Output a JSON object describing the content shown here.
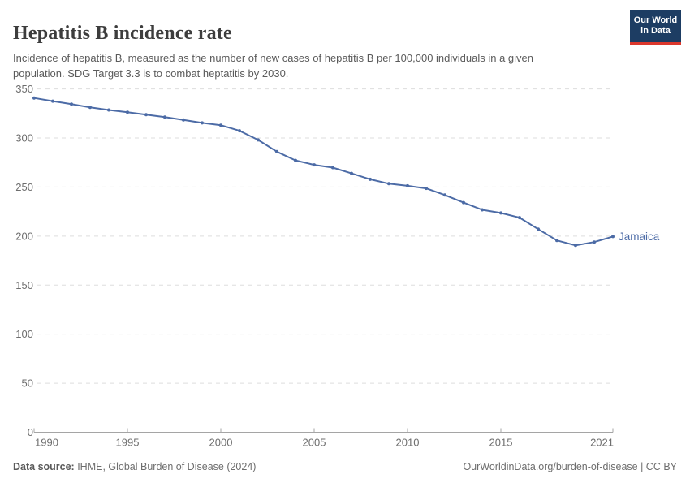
{
  "header": {
    "title": "Hepatitis B incidence rate",
    "subtitle": "Incidence of hepatitis B, measured as the number of new cases of hepatitis B per 100,000 individuals in a given population. SDG Target 3.3 is to combat heptatitis by 2030.",
    "logo": {
      "line1": "Our World",
      "line2": "in Data"
    }
  },
  "footer": {
    "datasource_label": "Data source:",
    "datasource_value": " IHME, Global Burden of Disease (2024)",
    "credit": "OurWorldinData.org/burden-of-disease | CC BY"
  },
  "colors": {
    "series_blue": "#4c6ba6",
    "grid": "#dddddd",
    "axis_line": "#a5a5a5",
    "axis_text": "#6e6e6e",
    "logo_bg": "#1d3d63",
    "logo_stripe": "#dc382d"
  },
  "chart_data": {
    "type": "line",
    "title": "Hepatitis B incidence rate",
    "xlabel": "",
    "ylabel": "New cases of hepatitis B per 100,000 individuals",
    "x": [
      1990,
      1991,
      1992,
      1993,
      1994,
      1995,
      1996,
      1997,
      1998,
      1999,
      2000,
      2001,
      2002,
      2003,
      2004,
      2005,
      2006,
      2007,
      2008,
      2009,
      2010,
      2011,
      2012,
      2013,
      2014,
      2015,
      2016,
      2017,
      2018,
      2019,
      2020,
      2021
    ],
    "series": [
      {
        "name": "Jamaica",
        "values": [
          340.8,
          337.6,
          334.6,
          331.2,
          328.6,
          326.3,
          323.8,
          321.4,
          318.4,
          315.4,
          313.1,
          307.4,
          298.0,
          286.1,
          277.2,
          272.6,
          269.8,
          263.9,
          257.9,
          253.4,
          251.3,
          248.6,
          241.8,
          234.1,
          226.8,
          223.5,
          218.8,
          207.1,
          195.6,
          190.5,
          193.9,
          199.5
        ]
      }
    ],
    "xlim": [
      1990,
      2021
    ],
    "ylim": [
      0,
      350
    ],
    "xticks": [
      1990,
      1995,
      2000,
      2005,
      2010,
      2015,
      2021
    ],
    "yticks": [
      0,
      50,
      100,
      150,
      200,
      250,
      300,
      350
    ],
    "grid": "horizontal-dashed",
    "legend_position": "line-end-label"
  }
}
